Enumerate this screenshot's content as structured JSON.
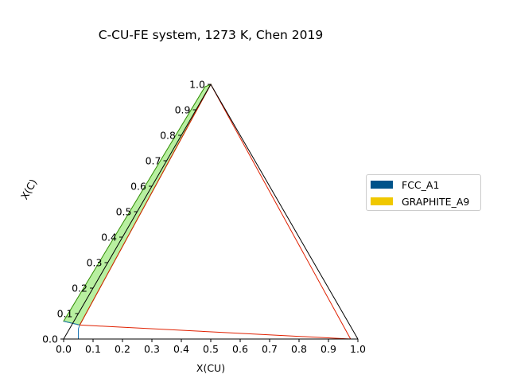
{
  "chart_data": {
    "type": "ternary-phase-diagram",
    "title": "C-CU-FE system, 1273 K, Chen 2019",
    "xlabel": "X(CU)",
    "ylabel": "X(C)",
    "xlim": [
      0,
      1
    ],
    "ylim": [
      0,
      1
    ],
    "xticks": [
      "0.0",
      "0.1",
      "0.2",
      "0.3",
      "0.4",
      "0.5",
      "0.6",
      "0.7",
      "0.8",
      "0.9",
      "1.0"
    ],
    "yticks": [
      "0.0",
      "0.1",
      "0.2",
      "0.3",
      "0.4",
      "0.5",
      "0.6",
      "0.7",
      "0.8",
      "0.9",
      "1.0"
    ],
    "legend": {
      "placement": "right",
      "entries": [
        {
          "name": "FCC_A1",
          "color": "#00538A"
        },
        {
          "name": "GRAPHITE_A9",
          "color": "#F0C800"
        }
      ]
    },
    "tie_triangle": {
      "color": "#E02000",
      "points": [
        [
          0.055,
          0.055
        ],
        [
          0.975,
          0.0
        ],
        [
          0.5,
          1.0
        ]
      ]
    },
    "two_phase_region": {
      "fill": "#B8F0A0",
      "edge": "#2E8B00",
      "points": [
        [
          0.0,
          0.07
        ],
        [
          0.055,
          0.055
        ],
        [
          0.5,
          1.0
        ],
        [
          0.48,
          0.99
        ]
      ]
    },
    "fcc_boundary": {
      "color": "#1F77B4",
      "points": [
        [
          0.05,
          0.0
        ],
        [
          0.05,
          0.04
        ],
        [
          0.055,
          0.055
        ],
        [
          0.0,
          0.07
        ]
      ]
    }
  }
}
